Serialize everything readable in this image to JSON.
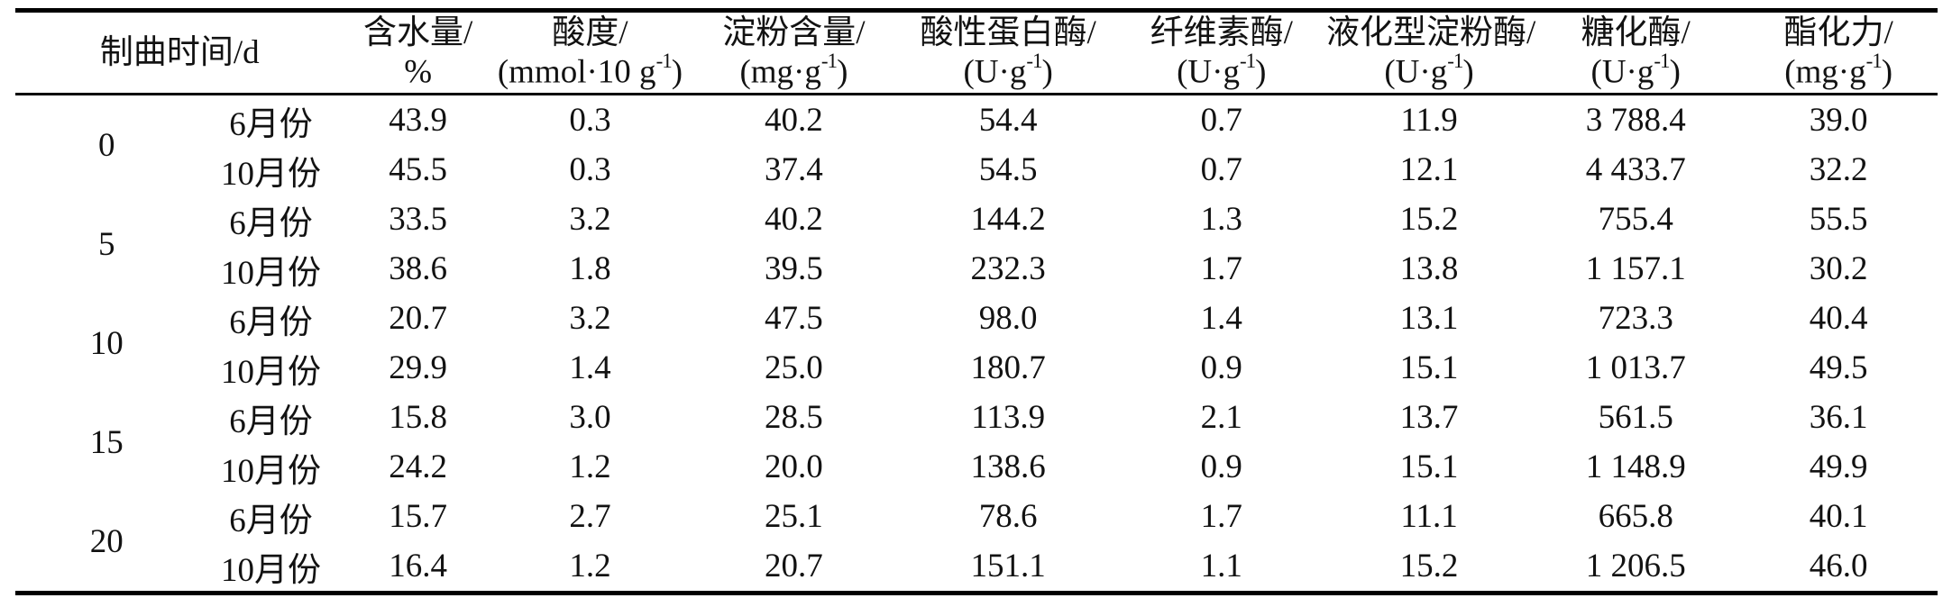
{
  "table": {
    "time_header": "制曲时间/d",
    "columns": [
      {
        "name": "含水量/",
        "unit_pre": "%",
        "unit_sup": "",
        "unit_post": ""
      },
      {
        "name": "酸度/",
        "unit_pre": "(mmol·10 g",
        "unit_sup": "-1",
        "unit_post": ")"
      },
      {
        "name": "淀粉含量/",
        "unit_pre": "(mg·g",
        "unit_sup": "-1",
        "unit_post": ")"
      },
      {
        "name": "酸性蛋白酶/",
        "unit_pre": "(U·g",
        "unit_sup": "-1",
        "unit_post": ")"
      },
      {
        "name": "纤维素酶/",
        "unit_pre": "(U·g",
        "unit_sup": "-1",
        "unit_post": ")"
      },
      {
        "name": "液化型淀粉酶/",
        "unit_pre": "(U·g",
        "unit_sup": "-1",
        "unit_post": ")"
      },
      {
        "name": "糖化酶/",
        "unit_pre": "(U·g",
        "unit_sup": "-1",
        "unit_post": ")"
      },
      {
        "name": "酯化力/",
        "unit_pre": "(mg·g",
        "unit_sup": "-1",
        "unit_post": ")"
      }
    ],
    "groups": [
      {
        "day": "0",
        "rows": [
          {
            "month": "6月份",
            "values": [
              "43.9",
              "0.3",
              "40.2",
              "54.4",
              "0.7",
              "11.9",
              "3 788.4",
              "39.0"
            ]
          },
          {
            "month": "10月份",
            "values": [
              "45.5",
              "0.3",
              "37.4",
              "54.5",
              "0.7",
              "12.1",
              "4 433.7",
              "32.2"
            ]
          }
        ]
      },
      {
        "day": "5",
        "rows": [
          {
            "month": "6月份",
            "values": [
              "33.5",
              "3.2",
              "40.2",
              "144.2",
              "1.3",
              "15.2",
              "755.4",
              "55.5"
            ]
          },
          {
            "month": "10月份",
            "values": [
              "38.6",
              "1.8",
              "39.5",
              "232.3",
              "1.7",
              "13.8",
              "1 157.1",
              "30.2"
            ]
          }
        ]
      },
      {
        "day": "10",
        "rows": [
          {
            "month": "6月份",
            "values": [
              "20.7",
              "3.2",
              "47.5",
              "98.0",
              "1.4",
              "13.1",
              "723.3",
              "40.4"
            ]
          },
          {
            "month": "10月份",
            "values": [
              "29.9",
              "1.4",
              "25.0",
              "180.7",
              "0.9",
              "15.1",
              "1 013.7",
              "49.5"
            ]
          }
        ]
      },
      {
        "day": "15",
        "rows": [
          {
            "month": "6月份",
            "values": [
              "15.8",
              "3.0",
              "28.5",
              "113.9",
              "2.1",
              "13.7",
              "561.5",
              "36.1"
            ]
          },
          {
            "month": "10月份",
            "values": [
              "24.2",
              "1.2",
              "20.0",
              "138.6",
              "0.9",
              "15.1",
              "1 148.9",
              "49.9"
            ]
          }
        ]
      },
      {
        "day": "20",
        "rows": [
          {
            "month": "6月份",
            "values": [
              "15.7",
              "2.7",
              "25.1",
              "78.6",
              "1.7",
              "11.1",
              "665.8",
              "40.1"
            ]
          },
          {
            "month": "10月份",
            "values": [
              "16.4",
              "1.2",
              "20.7",
              "151.1",
              "1.1",
              "15.2",
              "1 206.5",
              "46.0"
            ]
          }
        ]
      }
    ]
  },
  "colors": {
    "background": "#ffffff",
    "text": "#121212",
    "rule": "#000000"
  }
}
